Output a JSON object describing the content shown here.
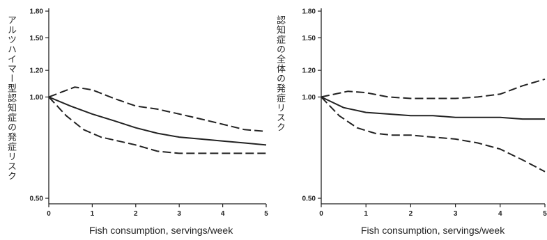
{
  "chart_data": [
    {
      "type": "line",
      "title": "",
      "xlabel": "Fish consumption, servings/week",
      "ylabel": "アルツハイマー型認知症の発症リスク",
      "x_ticks": [
        "0",
        "1",
        "2",
        "3",
        "4",
        "5"
      ],
      "y_ticks": [
        "0.50",
        "1.00",
        "1.20",
        "1.50",
        "1.80"
      ],
      "xlim": [
        0,
        5
      ],
      "ylim": [
        0.5,
        1.8
      ],
      "y_scale": "log",
      "grid": false,
      "series": [
        {
          "style": "dashed",
          "x": [
            0,
            0.6,
            1,
            1.5,
            2,
            2.5,
            3,
            3.5,
            4,
            4.5,
            5
          ],
          "values": [
            1.0,
            1.07,
            1.05,
            0.99,
            0.94,
            0.92,
            0.89,
            0.86,
            0.83,
            0.8,
            0.79
          ]
        },
        {
          "style": "solid",
          "x": [
            0,
            0.5,
            1,
            1.5,
            2,
            2.5,
            3,
            3.5,
            4,
            4.5,
            5
          ],
          "values": [
            1.0,
            0.94,
            0.89,
            0.85,
            0.81,
            0.78,
            0.76,
            0.75,
            0.74,
            0.73,
            0.72
          ]
        },
        {
          "style": "dashed",
          "x": [
            0,
            0.4,
            0.8,
            1.2,
            1.6,
            2,
            2.5,
            3,
            3.5,
            4,
            4.5,
            5
          ],
          "values": [
            1.0,
            0.88,
            0.8,
            0.76,
            0.74,
            0.72,
            0.69,
            0.68,
            0.68,
            0.68,
            0.68,
            0.68
          ]
        }
      ]
    },
    {
      "type": "line",
      "title": "",
      "xlabel": "Fish consumption, servings/week",
      "ylabel": "認知症の全体の発症リスク",
      "x_ticks": [
        "0",
        "1",
        "2",
        "3",
        "4",
        "5"
      ],
      "y_ticks": [
        "0.50",
        "1.00",
        "1.20",
        "1.50",
        "1.80"
      ],
      "xlim": [
        0,
        5
      ],
      "ylim": [
        0.5,
        1.8
      ],
      "y_scale": "log",
      "grid": false,
      "series": [
        {
          "style": "dashed",
          "x": [
            0,
            0.6,
            1,
            1.5,
            2,
            2.5,
            3,
            3.5,
            4,
            4.5,
            5
          ],
          "values": [
            1.0,
            1.04,
            1.03,
            1.0,
            0.99,
            0.99,
            0.99,
            1.0,
            1.02,
            1.08,
            1.13
          ]
        },
        {
          "style": "solid",
          "x": [
            0,
            0.5,
            1,
            1.5,
            2,
            2.5,
            3,
            3.5,
            4,
            4.5,
            5
          ],
          "values": [
            1.0,
            0.93,
            0.9,
            0.89,
            0.88,
            0.88,
            0.87,
            0.87,
            0.87,
            0.86,
            0.86
          ]
        },
        {
          "style": "dashed",
          "x": [
            0,
            0.4,
            0.8,
            1.2,
            1.6,
            2,
            2.5,
            3,
            3.5,
            4,
            4.5,
            5
          ],
          "values": [
            1.0,
            0.88,
            0.81,
            0.78,
            0.77,
            0.77,
            0.76,
            0.75,
            0.73,
            0.7,
            0.65,
            0.6
          ]
        }
      ]
    }
  ]
}
